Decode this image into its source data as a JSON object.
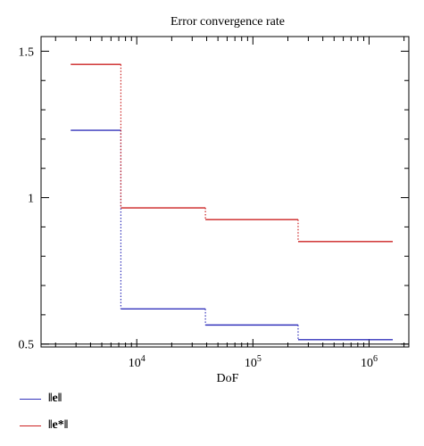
{
  "chart_data": {
    "type": "line",
    "style": "step",
    "title": "Error convergence rate",
    "xlabel": "DoF",
    "ylabel": "",
    "x_scale": "log",
    "xlim": [
      1500,
      2200000
    ],
    "ylim": [
      0.49,
      1.55
    ],
    "x_tick_labels": [
      {
        "value": 10000,
        "base": "10",
        "exp": "4"
      },
      {
        "value": 100000,
        "base": "10",
        "exp": "5"
      },
      {
        "value": 1000000,
        "base": "10",
        "exp": "6"
      }
    ],
    "y_ticks": [
      0.5,
      1,
      1.5
    ],
    "y_tick_labels": [
      "0.5",
      "1",
      "1.5"
    ],
    "reference_line": 0.5,
    "grid": false,
    "legend_position": "bottom-left",
    "series": [
      {
        "name": "‖e‖",
        "color": "#3333bb",
        "segments": [
          {
            "x0": 2700,
            "x1": 7300,
            "y": 1.23
          },
          {
            "x0": 7300,
            "x1": 39000,
            "y": 0.62
          },
          {
            "x0": 39000,
            "x1": 245000,
            "y": 0.565
          },
          {
            "x0": 245000,
            "x1": 1600000,
            "y": 0.515
          }
        ]
      },
      {
        "name": "‖e*‖",
        "color": "#cc2222",
        "segments": [
          {
            "x0": 2700,
            "x1": 7300,
            "y": 1.455
          },
          {
            "x0": 7300,
            "x1": 39000,
            "y": 0.965
          },
          {
            "x0": 39000,
            "x1": 245000,
            "y": 0.925
          },
          {
            "x0": 245000,
            "x1": 1600000,
            "y": 0.85
          }
        ]
      }
    ]
  },
  "legend": {
    "items": [
      {
        "label": "‖e‖",
        "color": "#3333bb"
      },
      {
        "label": "‖e*‖",
        "color": "#cc2222"
      }
    ]
  }
}
